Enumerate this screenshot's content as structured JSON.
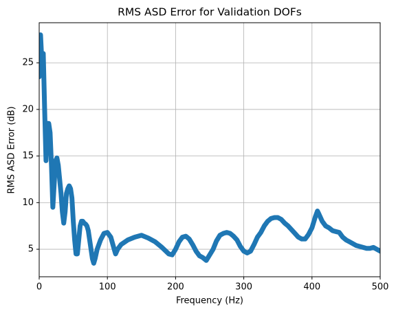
{
  "chart_data": {
    "type": "line",
    "title": "RMS ASD Error for Validation DOFs",
    "xlabel": "Frequency (Hz)",
    "ylabel": "RMS ASD Error (dB)",
    "x": [
      0,
      2,
      4,
      6,
      8,
      10,
      12,
      14,
      16,
      18,
      20,
      22,
      24,
      26,
      28,
      30,
      32,
      34,
      36,
      38,
      40,
      42,
      44,
      46,
      48,
      50,
      52,
      54,
      56,
      58,
      60,
      62,
      64,
      66,
      68,
      70,
      72,
      74,
      76,
      78,
      80,
      82,
      85,
      90,
      95,
      100,
      105,
      110,
      112,
      115,
      120,
      130,
      140,
      150,
      160,
      170,
      180,
      190,
      195,
      200,
      205,
      210,
      215,
      220,
      225,
      230,
      235,
      240,
      245,
      250,
      255,
      260,
      265,
      270,
      275,
      280,
      285,
      290,
      295,
      300,
      305,
      310,
      315,
      320,
      325,
      330,
      335,
      340,
      345,
      350,
      355,
      360,
      365,
      370,
      375,
      380,
      385,
      390,
      395,
      400,
      405,
      408,
      410,
      415,
      420,
      425,
      430,
      435,
      440,
      445,
      450,
      455,
      460,
      465,
      470,
      475,
      480,
      485,
      490,
      495,
      500
    ],
    "series": [
      {
        "name": "RMS ASD Error",
        "color": "#1f77b4",
        "values": [
          23.5,
          28,
          25,
          26,
          20,
          14.5,
          18.5,
          18.5,
          17.5,
          14,
          9.5,
          12,
          14.5,
          14.8,
          14,
          12.5,
          11,
          9,
          7.8,
          9,
          11,
          11.5,
          11.8,
          11.5,
          10.5,
          8,
          6,
          4.5,
          4.5,
          6,
          7.5,
          8,
          8,
          7.8,
          7.7,
          7.5,
          7,
          6,
          5,
          4,
          3.5,
          4,
          5,
          6,
          6.7,
          6.8,
          6.3,
          5,
          4.5,
          5,
          5.5,
          6,
          6.3,
          6.5,
          6.2,
          5.8,
          5.2,
          4.5,
          4.4,
          5,
          5.8,
          6.3,
          6.4,
          6.1,
          5.5,
          4.8,
          4.3,
          4.1,
          3.8,
          4.4,
          5,
          5.9,
          6.5,
          6.7,
          6.8,
          6.7,
          6.4,
          6,
          5.3,
          4.8,
          4.6,
          4.8,
          5.5,
          6.3,
          6.8,
          7.5,
          8,
          8.3,
          8.4,
          8.4,
          8.2,
          7.8,
          7.5,
          7.1,
          6.7,
          6.3,
          6.1,
          6.1,
          6.6,
          7.3,
          8.5,
          9.1,
          8.8,
          8,
          7.5,
          7.3,
          7,
          6.9,
          6.8,
          6.3,
          6,
          5.8,
          5.6,
          5.4,
          5.3,
          5.2,
          5.1,
          5.1,
          5.2,
          5,
          4.8
        ]
      }
    ],
    "xlim": [
      0,
      500
    ],
    "xticks": [
      0,
      100,
      200,
      300,
      400,
      500
    ],
    "ylim": [
      2.05,
      29.3
    ],
    "yticks": [
      5,
      10,
      15,
      20,
      25
    ],
    "grid": true
  }
}
